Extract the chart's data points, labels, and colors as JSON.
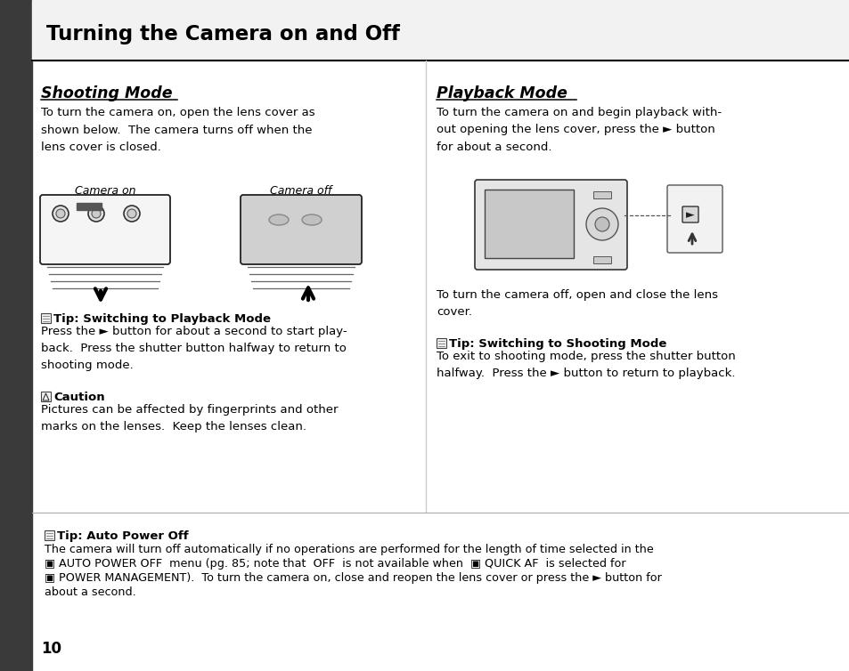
{
  "bg_color": "#ffffff",
  "page_width": 9.54,
  "page_height": 7.54,
  "title": "Turning the Camera on and Off",
  "left_heading": "Shooting Mode",
  "right_heading": "Playback Mode",
  "page_number": "10"
}
